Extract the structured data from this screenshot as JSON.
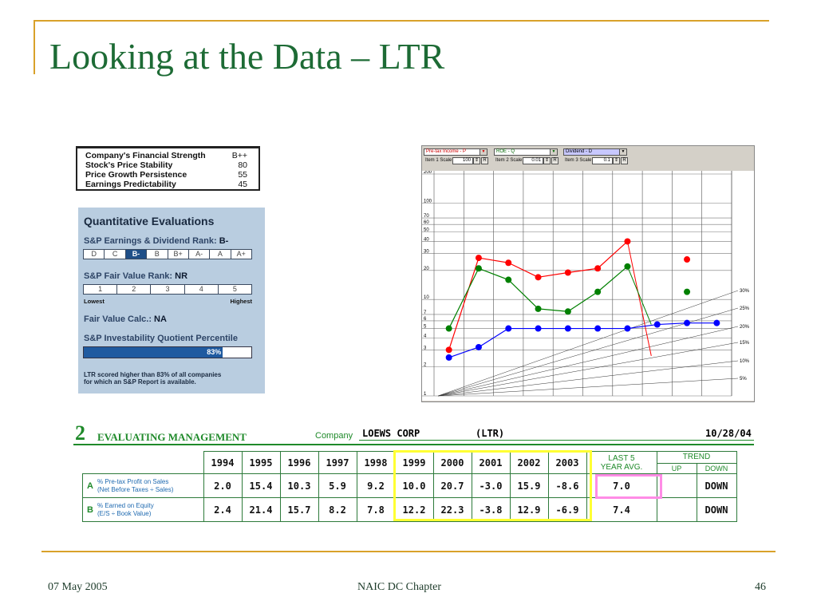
{
  "slide": {
    "title": "Looking at the Data – LTR",
    "footer_date": "07 May 2005",
    "footer_center": "NAIC DC Chapter",
    "page_number": "46",
    "accent_color": "#d9a12a",
    "title_color": "#1d6b35"
  },
  "ratings": [
    {
      "label": "Company's Financial Strength",
      "value": "B++"
    },
    {
      "label": "Stock's Price Stability",
      "value": "80"
    },
    {
      "label": "Price Growth Persistence",
      "value": "55"
    },
    {
      "label": "Earnings Predictability",
      "value": "45"
    }
  ],
  "quant": {
    "heading": "Quantitative Evaluations",
    "earnings_label": "S&P Earnings & Dividend Rank:",
    "earnings_value": "B-",
    "earnings_scale": [
      "D",
      "C",
      "B-",
      "B",
      "B+",
      "A-",
      "A",
      "A+"
    ],
    "earnings_selected": "B-",
    "fair_label": "S&P Fair Value Rank:",
    "fair_value": "NR",
    "fair_scale": [
      "1",
      "2",
      "3",
      "4",
      "5"
    ],
    "lowest": "Lowest",
    "highest": "Highest",
    "calc_label": "Fair Value Calc.:",
    "calc_value": "NA",
    "percentile_label": "S&P Investability Quotient Percentile",
    "percentile": 83,
    "percentile_text": "83%",
    "note_line1": "LTR scored higher than 83% of all companies",
    "note_line2": "for which an S&P Report is available."
  },
  "chart_controls": {
    "item1_select": "Pre-tax Income - P",
    "item2_select": "ROE - Q",
    "item3_select": "Dividend - D",
    "item1_scale_label": "Item 1 Scale",
    "item2_scale_label": "Item 2 Scale",
    "item3_scale_label": "Item 3 Scale",
    "item1_scale": "100",
    "item2_scale": "0.01",
    "item3_scale": "0.1",
    "reset_label": "R"
  },
  "chart_data": {
    "type": "line",
    "y_scale": "log",
    "ylim": [
      1,
      200
    ],
    "y_ticks": [
      "200",
      "100",
      "70",
      "60",
      "50",
      "40",
      "30",
      "20",
      "10",
      "7",
      "6",
      "5",
      "4",
      "3",
      "2",
      "1"
    ],
    "growth_labels": [
      "30%",
      "25%",
      "20%",
      "15%",
      "10%",
      "5%"
    ],
    "series": [
      {
        "color": "#ff0000",
        "values": [
          3,
          27,
          24,
          17,
          19,
          21,
          40,
          null,
          26
        ],
        "trend_to": [
          2.6,
          null,
          6.5,
          null,
          5.5
        ]
      },
      {
        "color": "#008000",
        "values": [
          5,
          21,
          16,
          8,
          7.5,
          12,
          22,
          null,
          12
        ],
        "trend_to": [
          5.5,
          null,
          4.2,
          null,
          4.5
        ]
      },
      {
        "color": "#0000ff",
        "values": [
          2.5,
          3.2,
          5,
          5,
          5,
          5,
          5,
          5.5,
          5.7,
          5.7
        ],
        "trend_to": []
      }
    ]
  },
  "evaluating": {
    "section_number": "2",
    "section_title": "EVALUATING MANAGEMENT",
    "company_label": "Company",
    "company_name": "LOEWS CORP",
    "ticker": "(LTR)",
    "date": "10/28/04",
    "years": [
      "1994",
      "1995",
      "1996",
      "1997",
      "1998",
      "1999",
      "2000",
      "2001",
      "2002",
      "2003"
    ],
    "last5_line1": "LAST 5",
    "last5_line2": "YEAR AVG.",
    "trend_label": "TREND",
    "up_label": "UP",
    "down_label": "DOWN",
    "rows": [
      {
        "letter": "A",
        "label_line1": "% Pre-tax Profit on Sales",
        "label_line2": "(Net Before Taxes ÷ Sales)",
        "values": [
          "2.0",
          "15.4",
          "10.3",
          "5.9",
          "9.2",
          "10.0",
          "20.7",
          "-3.0",
          "15.9",
          "-8.6"
        ],
        "avg": "7.0",
        "trend_up": "",
        "trend_down": "DOWN"
      },
      {
        "letter": "B",
        "label_line1": "% Earned on Equity",
        "label_line2": "(E/S ÷ Book Value)",
        "values": [
          "2.4",
          "21.4",
          "15.7",
          "8.2",
          "7.8",
          "12.2",
          "22.3",
          "-3.8",
          "12.9",
          "-6.9"
        ],
        "avg": "7.4",
        "trend_up": "",
        "trend_down": "DOWN"
      }
    ]
  }
}
